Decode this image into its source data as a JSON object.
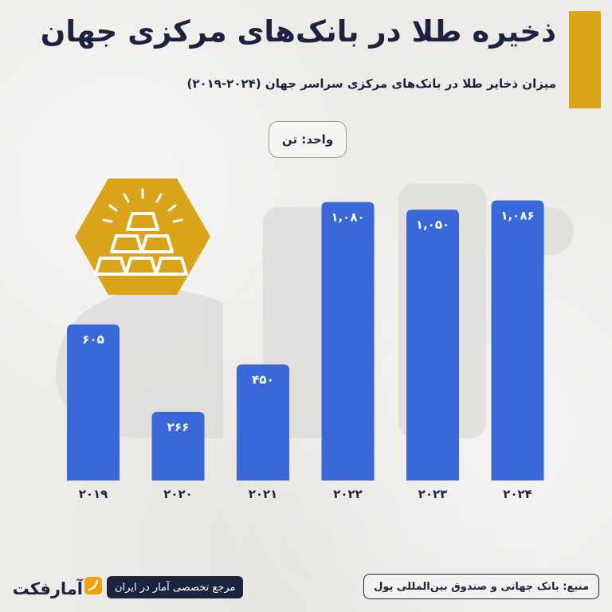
{
  "header": {
    "title": "ذخیره طلا در بانک‌های مرکزی جهان",
    "subtitle": "میزان ذخایر طلا در بانک‌های مرکزی سراسر جهان (۲۰۲۴-۲۰۱۹)",
    "unit_label": "واحد: تن"
  },
  "colors": {
    "bar": "#3a68d8",
    "accent": "#d9a31a",
    "navy": "#1b2340",
    "icon": "#d9a31a"
  },
  "icons": {
    "gold": "gold-bars-icon",
    "logo": "amarfact-logo-icon"
  },
  "chart_data": {
    "type": "bar",
    "categories": [
      "۲۰۱۹",
      "۲۰۲۰",
      "۲۰۲۱",
      "۲۰۲۲",
      "۲۰۲۳",
      "۲۰۲۴"
    ],
    "values": [
      605,
      266,
      450,
      1080,
      1050,
      1086
    ],
    "value_labels": [
      "۶۰۵",
      "۲۶۶",
      "۴۵۰",
      "۱,۰۸۰",
      "۱,۰۵۰",
      "۱,۰۸۶"
    ],
    "title": "",
    "xlabel": "",
    "ylabel": "",
    "ylim": [
      0,
      1100
    ],
    "grid": false
  },
  "footer": {
    "source": "منبع: بانک جهانی و صندوق بین‌المللی پول",
    "tagline": "مرجع تخصصی آمار در ایران",
    "brand": "آمارفکت"
  }
}
